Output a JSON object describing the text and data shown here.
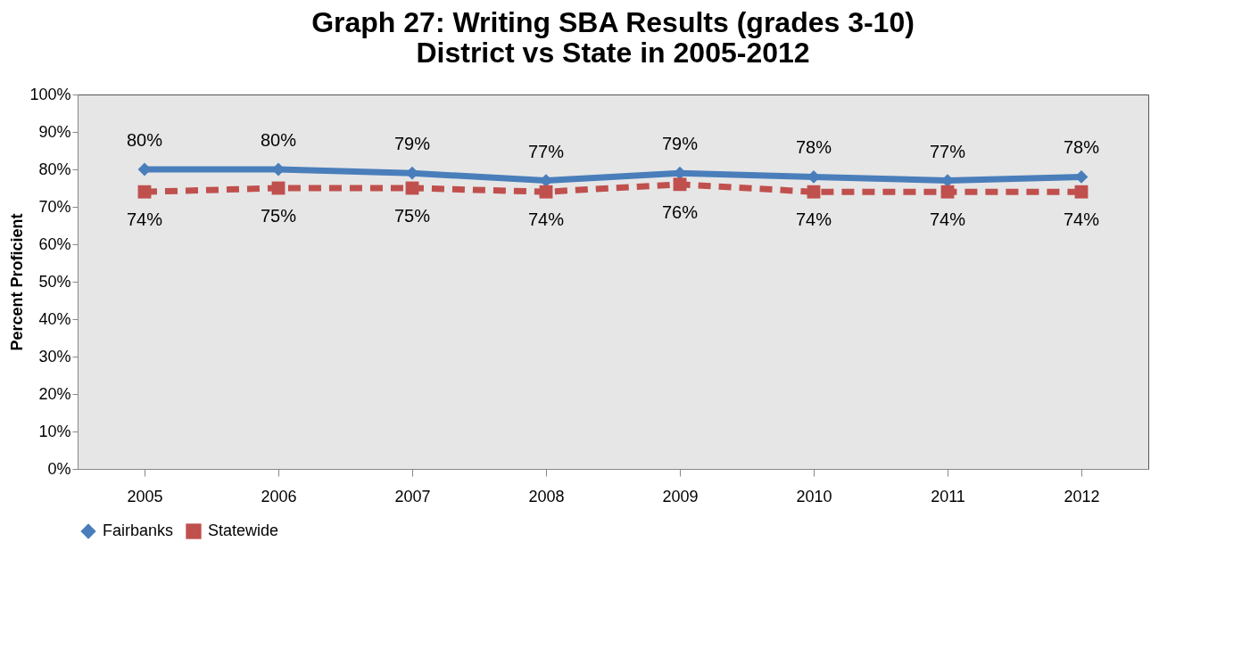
{
  "chart_data": {
    "type": "line",
    "title": "Graph 27: Writing SBA Results (grades 3-10)\nDistrict vs State in 2005-2012",
    "ylabel": "Percent Proficient",
    "categories": [
      "2005",
      "2006",
      "2007",
      "2008",
      "2009",
      "2010",
      "2011",
      "2012"
    ],
    "series": [
      {
        "name": "Fairbanks",
        "color": "#4a7ebb",
        "marker": "diamond",
        "line_style": "solid",
        "values": [
          80,
          80,
          79,
          77,
          79,
          78,
          77,
          78
        ],
        "value_labels": [
          "80%",
          "80%",
          "79%",
          "77%",
          "79%",
          "78%",
          "77%",
          "78%"
        ]
      },
      {
        "name": "Statewide",
        "color": "#c0504d",
        "marker": "square",
        "line_style": "dashed",
        "values": [
          74,
          75,
          75,
          74,
          76,
          74,
          74,
          74
        ],
        "value_labels": [
          "74%",
          "75%",
          "75%",
          "74%",
          "76%",
          "74%",
          "74%",
          "74%"
        ]
      }
    ],
    "ylim": [
      0,
      100
    ],
    "yticks": [
      {
        "value": 0,
        "label": "0%"
      },
      {
        "value": 10,
        "label": "10%"
      },
      {
        "value": 20,
        "label": "20%"
      },
      {
        "value": 30,
        "label": "30%"
      },
      {
        "value": 40,
        "label": "40%"
      },
      {
        "value": 50,
        "label": "50%"
      },
      {
        "value": 60,
        "label": "60%"
      },
      {
        "value": 70,
        "label": "70%"
      },
      {
        "value": 80,
        "label": "80%"
      },
      {
        "value": 90,
        "label": "90%"
      },
      {
        "value": 100,
        "label": "100%"
      }
    ],
    "grid": false,
    "legend": "bottom"
  }
}
